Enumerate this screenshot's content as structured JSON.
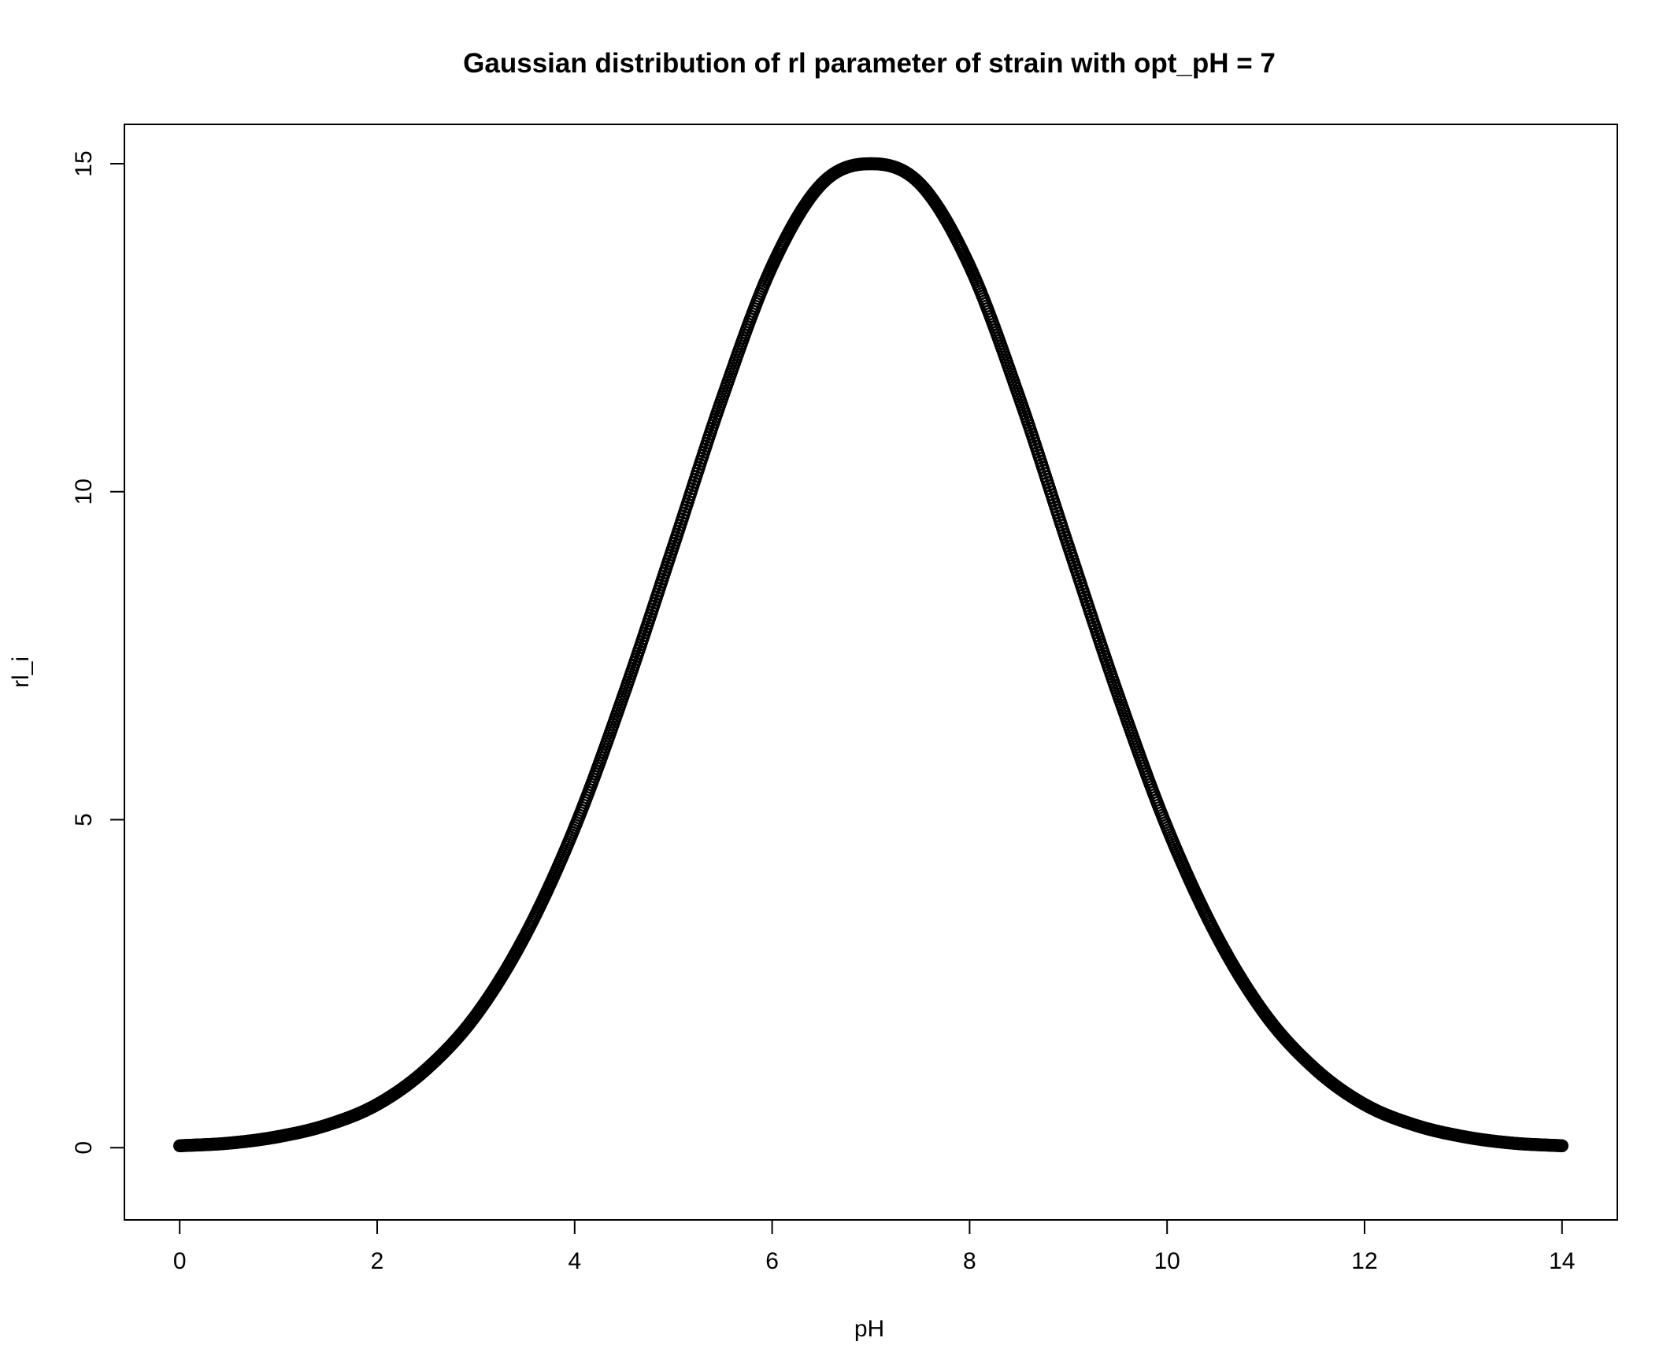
{
  "chart_data": {
    "type": "scatter",
    "title": "Gaussian distribution of rl parameter of strain with opt_pH = 7",
    "xlabel": "pH",
    "ylabel": "rl_i",
    "xlim": [
      -0.56,
      14.56
    ],
    "ylim": [
      -1.1,
      15.6
    ],
    "x_ticks": [
      "0",
      "2",
      "4",
      "6",
      "8",
      "10",
      "12",
      "14"
    ],
    "y_ticks": [
      "0",
      "5",
      "10",
      "15"
    ],
    "grid": false,
    "legend": "none",
    "series": [
      {
        "marker": "open-circle",
        "color": "#000000",
        "x": [
          0.0,
          0.5,
          1.0,
          1.5,
          2.0,
          2.5,
          3.0,
          3.5,
          4.0,
          4.5,
          5.0,
          5.5,
          6.0,
          6.5,
          7.0,
          7.5,
          8.0,
          8.5,
          9.0,
          9.5,
          10.0,
          10.5,
          11.0,
          11.5,
          12.0,
          12.5,
          13.0,
          13.5,
          14.0
        ],
        "values": [
          0.03,
          0.07,
          0.17,
          0.35,
          0.66,
          1.2,
          2.02,
          3.24,
          4.88,
          6.92,
          9.17,
          11.45,
          13.44,
          14.69,
          15.0,
          14.69,
          13.44,
          11.45,
          9.17,
          6.92,
          4.88,
          3.24,
          2.02,
          1.2,
          0.66,
          0.35,
          0.17,
          0.07,
          0.03
        ]
      }
    ]
  },
  "colors": {
    "ink": "#000000",
    "background": "#ffffff"
  }
}
